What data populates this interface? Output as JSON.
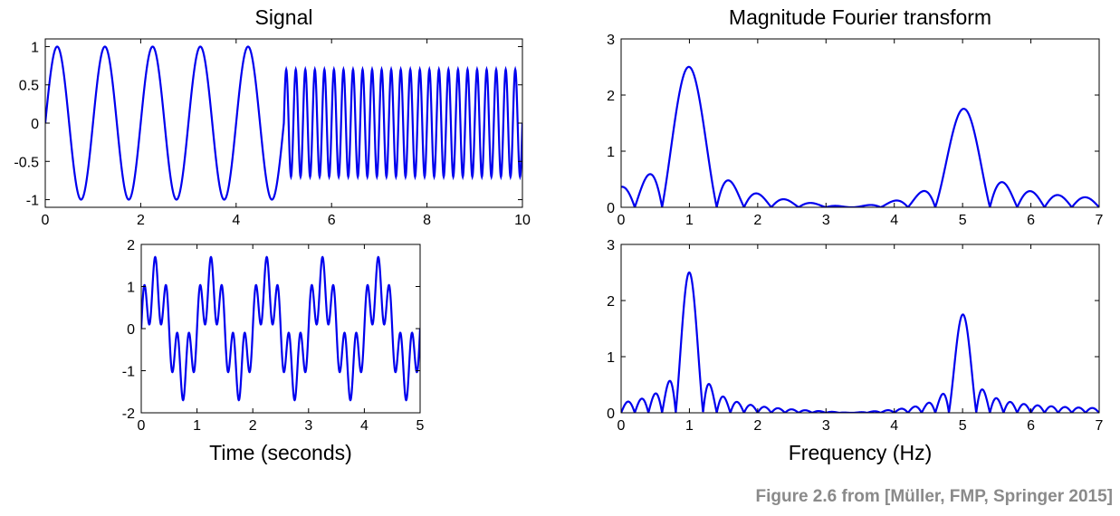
{
  "chart_data": [
    {
      "type": "line",
      "title": "Signal",
      "xlabel": "",
      "xlim": [
        0,
        10
      ],
      "ylim": [
        -1.1,
        1.1
      ],
      "xticks": [
        0,
        2,
        4,
        6,
        8,
        10
      ],
      "yticks": [
        -1,
        -0.5,
        0,
        0.5,
        1
      ],
      "xtick_labels": [
        "0",
        "2",
        "4",
        "6",
        "8",
        "10"
      ],
      "ytick_labels": [
        "-1",
        "-0.5",
        "0",
        "0.5",
        "1"
      ],
      "color": "#0000ee",
      "signal": {
        "segments": [
          {
            "t0": 0,
            "t1": 5,
            "freq": 1,
            "amp": 1
          },
          {
            "t0": 5,
            "t1": 10,
            "freq": 5,
            "amp": 0.7
          }
        ]
      }
    },
    {
      "type": "line",
      "title": "",
      "xlabel": "Time (seconds)",
      "xlim": [
        0,
        5
      ],
      "ylim": [
        -2,
        2
      ],
      "xticks": [
        0,
        1,
        2,
        3,
        4,
        5
      ],
      "yticks": [
        -2,
        -1,
        0,
        1,
        2
      ],
      "xtick_labels": [
        "0",
        "1",
        "2",
        "3",
        "4",
        "5"
      ],
      "ytick_labels": [
        "-2",
        "-1",
        "0",
        "1",
        "2"
      ],
      "color": "#0000ee",
      "signal": {
        "components": [
          {
            "freq": 1,
            "amp": 1
          },
          {
            "freq": 5,
            "amp": 0.7
          }
        ]
      }
    },
    {
      "type": "line",
      "title": "Magnitude Fourier transform",
      "xlabel": "",
      "xlim": [
        0,
        7
      ],
      "ylim": [
        0,
        3
      ],
      "xticks": [
        0,
        1,
        2,
        3,
        4,
        5,
        6,
        7
      ],
      "yticks": [
        0,
        1,
        2,
        3
      ],
      "xtick_labels": [
        "0",
        "1",
        "2",
        "3",
        "4",
        "5",
        "6",
        "7"
      ],
      "ytick_labels": [
        "0",
        "1",
        "2",
        "3"
      ],
      "color": "#0000ee",
      "peaks": [
        {
          "freq": 1,
          "height": 2.5
        },
        {
          "freq": 5,
          "height": 1.75
        }
      ],
      "window_duration": 5
    },
    {
      "type": "line",
      "title": "",
      "xlabel": "Frequency (Hz)",
      "xlim": [
        0,
        7
      ],
      "ylim": [
        0,
        3
      ],
      "xticks": [
        0,
        1,
        2,
        3,
        4,
        5,
        6,
        7
      ],
      "yticks": [
        0,
        1,
        2,
        3
      ],
      "xtick_labels": [
        "0",
        "1",
        "2",
        "3",
        "4",
        "5",
        "6",
        "7"
      ],
      "ytick_labels": [
        "0",
        "1",
        "2",
        "3"
      ],
      "color": "#0000ee",
      "peaks": [
        {
          "freq": 1,
          "height": 2.5
        },
        {
          "freq": 5,
          "height": 1.75
        }
      ],
      "window_duration": 10
    }
  ],
  "caption": "Figure 2.6 from [Müller, FMP, Springer 2015]"
}
